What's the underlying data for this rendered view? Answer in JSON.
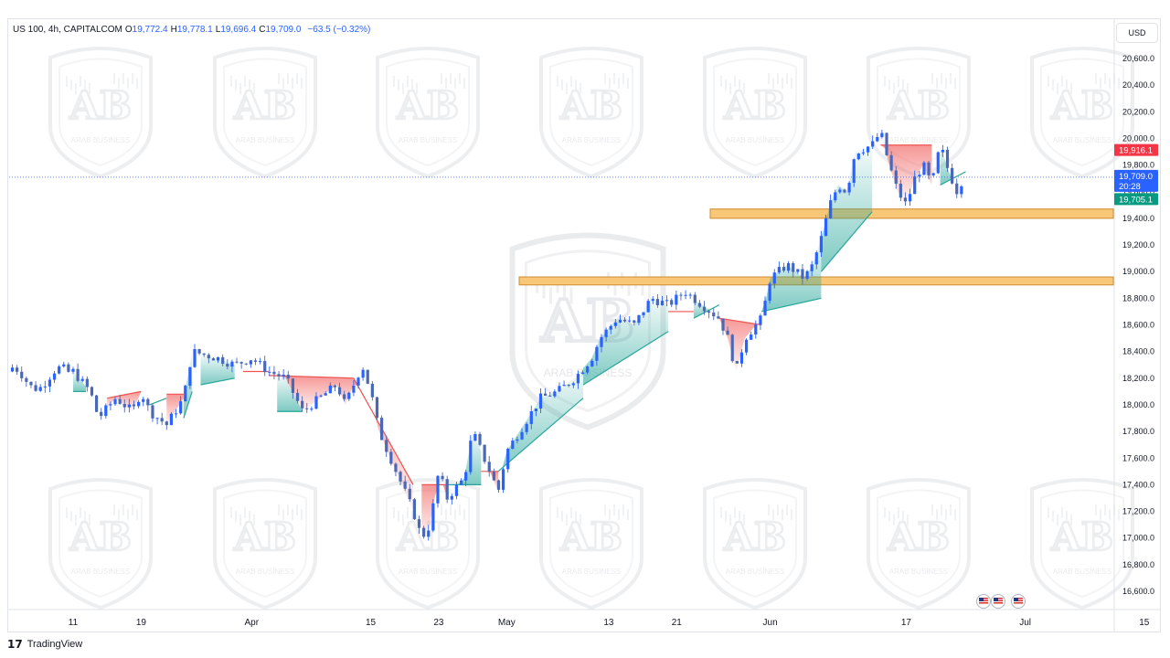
{
  "header": {
    "symbol": "US 100, 4h, CAPITALCOM",
    "o_label": "O",
    "o_value": "19,772.4",
    "h_label": "H",
    "h_value": "19,778.1",
    "l_label": "L",
    "l_value": "19,696.4",
    "c_label": "C",
    "c_value": "19,709.0",
    "change": "−63.5 (−0.32%)"
  },
  "currency_button": "USD",
  "watermark_text": "ARAB BUSINESS",
  "footer": {
    "logo": "17",
    "brand": "TradingView"
  },
  "price_tags": {
    "red": "19,916.1",
    "blue_price": "19,709.0",
    "blue_timer": "20:28",
    "green": "19,705.1"
  },
  "event_icons": [
    "us-flag-icon",
    "us-flag-icon",
    "us-flag-icon"
  ],
  "colors": {
    "up_candle": "#2962ff",
    "down_candle": "#4a68b5",
    "support_zone": "#f8c777",
    "cloud_bull": "#26a69a",
    "cloud_bear": "#ef5350",
    "tag_red": "#f23645",
    "tag_blue": "#2962ff",
    "tag_green": "#089981"
  },
  "chart_data": {
    "type": "candlestick",
    "timeframe": "4h",
    "ylim": [
      16400,
      20800
    ],
    "y_ticks": [
      16600,
      16800,
      17000,
      17200,
      17400,
      17600,
      17800,
      18000,
      18200,
      18400,
      18600,
      18800,
      19000,
      19200,
      19400,
      19600,
      19800,
      20000,
      20200,
      20400,
      20600
    ],
    "y_tick_labels": [
      "16,600.0",
      "16,800.0",
      "17,000.0",
      "17,200.0",
      "17,400.0",
      "17,600.0",
      "17,800.0",
      "18,000.0",
      "18,200.0",
      "18,400.0",
      "18,600.0",
      "18,800.0",
      "19,000.0",
      "19,200.0",
      "19,400.0",
      "19,600.0",
      "19,800.0",
      "20,000.0",
      "20,200.0",
      "20,400.0",
      "20,600.0"
    ],
    "x_ticks": [
      {
        "label": "11",
        "day": 0
      },
      {
        "label": "19",
        "day": 8
      },
      {
        "label": "Apr",
        "day": 21
      },
      {
        "label": "15",
        "day": 35
      },
      {
        "label": "23",
        "day": 43
      },
      {
        "label": "May",
        "day": 51
      },
      {
        "label": "13",
        "day": 63
      },
      {
        "label": "21",
        "day": 71
      },
      {
        "label": "Jun",
        "day": 82
      },
      {
        "label": "17",
        "day": 98
      },
      {
        "label": "Jul",
        "day": 112
      },
      {
        "label": "15",
        "day": 126
      }
    ],
    "current_price": 19709.0,
    "support_zones": [
      [
        19400,
        19470
      ],
      [
        18900,
        18960
      ]
    ],
    "price_path": [
      [
        0,
        18250
      ],
      [
        2,
        18100
      ],
      [
        3,
        17900
      ],
      [
        5,
        18050
      ],
      [
        7,
        17950
      ],
      [
        8,
        18100
      ],
      [
        9,
        17950
      ],
      [
        11,
        17850
      ],
      [
        13,
        18050
      ],
      [
        14,
        18400
      ],
      [
        17,
        18350
      ],
      [
        19,
        18300
      ],
      [
        21,
        18350
      ],
      [
        23,
        18250
      ],
      [
        25,
        18200
      ],
      [
        27,
        17950
      ],
      [
        29,
        18050
      ],
      [
        31,
        18150
      ],
      [
        32,
        18000
      ],
      [
        34,
        18300
      ],
      [
        35,
        18100
      ],
      [
        36,
        17800
      ],
      [
        38,
        17500
      ],
      [
        40,
        17200
      ],
      [
        41,
        17000
      ],
      [
        42,
        17100
      ],
      [
        43,
        17500
      ],
      [
        44,
        17300
      ],
      [
        46,
        17450
      ],
      [
        47,
        17800
      ],
      [
        48,
        17650
      ],
      [
        50,
        17350
      ],
      [
        51,
        17650
      ],
      [
        53,
        17850
      ],
      [
        55,
        18050
      ],
      [
        57,
        18100
      ],
      [
        59,
        18200
      ],
      [
        61,
        18350
      ],
      [
        62,
        18500
      ],
      [
        64,
        18650
      ],
      [
        66,
        18600
      ],
      [
        68,
        18800
      ],
      [
        70,
        18750
      ],
      [
        72,
        18850
      ],
      [
        74,
        18750
      ],
      [
        76,
        18650
      ],
      [
        77,
        18500
      ],
      [
        78,
        18250
      ],
      [
        79,
        18500
      ],
      [
        81,
        18650
      ],
      [
        82,
        18950
      ],
      [
        84,
        19050
      ],
      [
        86,
        18950
      ],
      [
        87,
        19050
      ],
      [
        88,
        19250
      ],
      [
        89,
        19500
      ],
      [
        90,
        19650
      ],
      [
        91,
        19600
      ],
      [
        92,
        19900
      ],
      [
        94,
        19950
      ],
      [
        95,
        20050
      ],
      [
        96,
        19800
      ],
      [
        97,
        19600
      ],
      [
        98,
        19500
      ],
      [
        99,
        19700
      ],
      [
        100,
        19800
      ],
      [
        101,
        19650
      ],
      [
        102,
        19950
      ],
      [
        103,
        19750
      ],
      [
        104,
        19600
      ],
      [
        105,
        19750
      ]
    ],
    "cloud_segments": [
      {
        "type": "bull",
        "from": [
          0,
          18100
        ],
        "to": [
          1.5,
          18100
        ]
      },
      {
        "type": "bear",
        "from": [
          4,
          18050
        ],
        "to": [
          8,
          18100
        ]
      },
      {
        "type": "bull",
        "from": [
          9,
          18000
        ],
        "to": [
          11,
          18050
        ]
      },
      {
        "type": "bear",
        "from": [
          11,
          18080
        ],
        "to": [
          13,
          18080
        ]
      },
      {
        "type": "bull",
        "from": [
          13,
          17900
        ],
        "to": [
          14,
          18100
        ]
      },
      {
        "type": "bull",
        "from": [
          15,
          18150
        ],
        "to": [
          19,
          18200
        ]
      },
      {
        "type": "bear",
        "from": [
          20,
          18250
        ],
        "to": [
          23,
          18250
        ]
      },
      {
        "type": "bear",
        "from": [
          23,
          18220
        ],
        "to": [
          33,
          18200
        ]
      },
      {
        "type": "bull",
        "from": [
          24,
          17950
        ],
        "to": [
          27,
          17950
        ]
      },
      {
        "type": "bear",
        "from": [
          33,
          18200
        ],
        "to": [
          40,
          17400
        ]
      },
      {
        "type": "bear",
        "from": [
          41,
          17400
        ],
        "to": [
          44,
          17400
        ]
      },
      {
        "type": "bull",
        "from": [
          44,
          17400
        ],
        "to": [
          48,
          17400
        ]
      },
      {
        "type": "bear",
        "from": [
          48,
          17500
        ],
        "to": [
          50,
          17500
        ]
      },
      {
        "type": "bull",
        "from": [
          50,
          17500
        ],
        "to": [
          60,
          18050
        ]
      },
      {
        "type": "bull",
        "from": [
          60,
          18150
        ],
        "to": [
          70,
          18550
        ]
      },
      {
        "type": "bear",
        "from": [
          70,
          18700
        ],
        "to": [
          73,
          18700
        ]
      },
      {
        "type": "bull",
        "from": [
          73,
          18650
        ],
        "to": [
          76,
          18750
        ]
      },
      {
        "type": "bear",
        "from": [
          76,
          18650
        ],
        "to": [
          81,
          18600
        ]
      },
      {
        "type": "bull",
        "from": [
          81,
          18700
        ],
        "to": [
          88,
          18800
        ]
      },
      {
        "type": "bull",
        "from": [
          88,
          19000
        ],
        "to": [
          94,
          19450
        ]
      },
      {
        "type": "bear",
        "from": [
          95,
          19950
        ],
        "to": [
          101,
          19950
        ]
      },
      {
        "type": "bull",
        "from": [
          102,
          19650
        ],
        "to": [
          105,
          19750
        ]
      }
    ],
    "price_labels": [
      {
        "kind": "red",
        "value": 19916.1
      },
      {
        "kind": "blue",
        "value": 19709.0
      },
      {
        "kind": "green",
        "value": 19705.1
      }
    ],
    "grid": false,
    "watermark_count": 15
  }
}
